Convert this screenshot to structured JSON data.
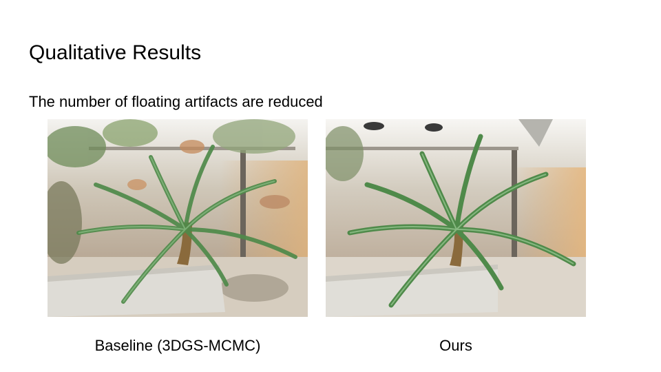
{
  "slide": {
    "title": "Qualitative Results",
    "subtitle": "The number of floating artifacts are reduced"
  },
  "figures": [
    {
      "caption": "Baseline (3DGS-MCMC)",
      "image": "cycad-plant-render-with-artifacts"
    },
    {
      "caption": "Ours",
      "image": "cycad-plant-render-clean"
    }
  ],
  "colors": {
    "frond": "#4f8a4a",
    "frond_light": "#7fb17a",
    "trunk": "#8a6a3c",
    "planter": "#dcdad5",
    "floor": "#d9d1c6",
    "wall": "#c9c3b8",
    "ceiling": "#f2f1ee"
  }
}
